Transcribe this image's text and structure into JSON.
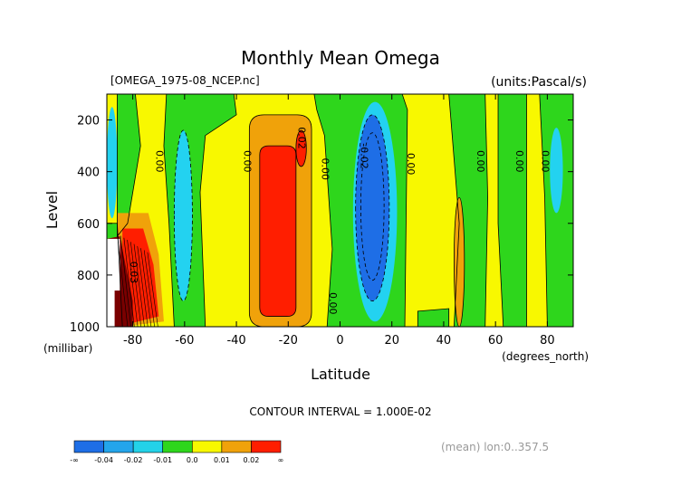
{
  "chart_data": {
    "type": "heatmap",
    "title": "Monthly Mean Omega",
    "file_label": "[OMEGA_1975-08_NCEP.nc]",
    "units_label": "(units:Pascal/s)",
    "ylabel": "Level",
    "ylabel_unit": "(millibar)",
    "xlabel": "Latitude",
    "xlabel_unit": "(degrees_north)",
    "x_ticks": [
      "-80",
      "-60",
      "-40",
      "-20",
      "0",
      "20",
      "40",
      "60",
      "80"
    ],
    "y_ticks": [
      "200",
      "400",
      "600",
      "800",
      "1000"
    ],
    "xlim": [
      -90,
      90
    ],
    "ylim": [
      1000,
      100
    ],
    "contour_interval_text": "CONTOUR INTERVAL = 1.000E-02",
    "footnote": "(mean) lon:0..357.5",
    "contour_labels": [
      {
        "text": "0.00",
        "lat": -71,
        "lev": 360
      },
      {
        "text": "0.00",
        "lat": -37,
        "lev": 360
      },
      {
        "text": "0.02",
        "lat": -16,
        "lev": 270
      },
      {
        "text": "0.00",
        "lat": -7,
        "lev": 390
      },
      {
        "text": "-0.02",
        "lat": 8,
        "lev": 340
      },
      {
        "text": "0.00",
        "lat": 26,
        "lev": 370
      },
      {
        "text": "0.00",
        "lat": 53,
        "lev": 360
      },
      {
        "text": "0.00",
        "lat": 68,
        "lev": 360
      },
      {
        "text": "0.00",
        "lat": 78,
        "lev": 360
      },
      {
        "text": "0.00",
        "lat": -4,
        "lev": 910
      },
      {
        "text": "0.03",
        "lat": -81,
        "lev": 790
      }
    ],
    "legend": {
      "labels": [
        "-∞",
        "-0.04",
        "-0.02",
        "-0.01",
        "0.0",
        "0.01",
        "0.02",
        "∞"
      ],
      "colors": [
        "#1e6ee6",
        "#23a5eb",
        "#23d2e8",
        "#2ed61c",
        "#f8f800",
        "#f0a20a",
        "#ff1e00"
      ]
    },
    "palette": {
      "blue": "#1e6ee6",
      "cyan": "#23d2f0",
      "green": "#2ed61c",
      "yellow": "#f8f800",
      "orange": "#f0a20a",
      "red": "#ff1e00",
      "darkred": "#7a0000"
    }
  }
}
